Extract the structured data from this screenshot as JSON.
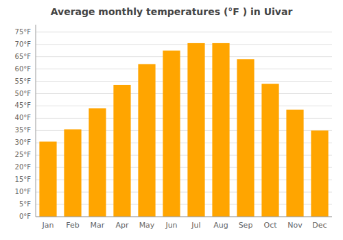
{
  "chart_data": {
    "type": "bar",
    "title": "Average monthly temperatures (°F ) in Uivar",
    "categories": [
      "Jan",
      "Feb",
      "Mar",
      "Apr",
      "May",
      "Jun",
      "Jul",
      "Aug",
      "Sep",
      "Oct",
      "Nov",
      "Dec"
    ],
    "values": [
      30.5,
      35.5,
      44,
      53.5,
      62,
      67.5,
      70.5,
      70.5,
      64,
      54,
      43.5,
      35
    ],
    "color": "#FFA500",
    "ylim": [
      0,
      78
    ],
    "yticks": [
      {
        "value": 0,
        "label": "0°F"
      },
      {
        "value": 5,
        "label": "5°F"
      },
      {
        "value": 10,
        "label": "10°F"
      },
      {
        "value": 15,
        "label": "15°F"
      },
      {
        "value": 20,
        "label": "20°F"
      },
      {
        "value": 25,
        "label": "25°F"
      },
      {
        "value": 30,
        "label": "30°F"
      },
      {
        "value": 35,
        "label": "35°F"
      },
      {
        "value": 40,
        "label": "40°F"
      },
      {
        "value": 45,
        "label": "45°F"
      },
      {
        "value": 50,
        "label": "50°F"
      },
      {
        "value": 55,
        "label": "55°F"
      },
      {
        "value": 60,
        "label": "60°F"
      },
      {
        "value": 65,
        "label": "65°F"
      },
      {
        "value": 70,
        "label": "70°F"
      },
      {
        "value": 75,
        "label": "75°F"
      }
    ],
    "grid": true
  }
}
